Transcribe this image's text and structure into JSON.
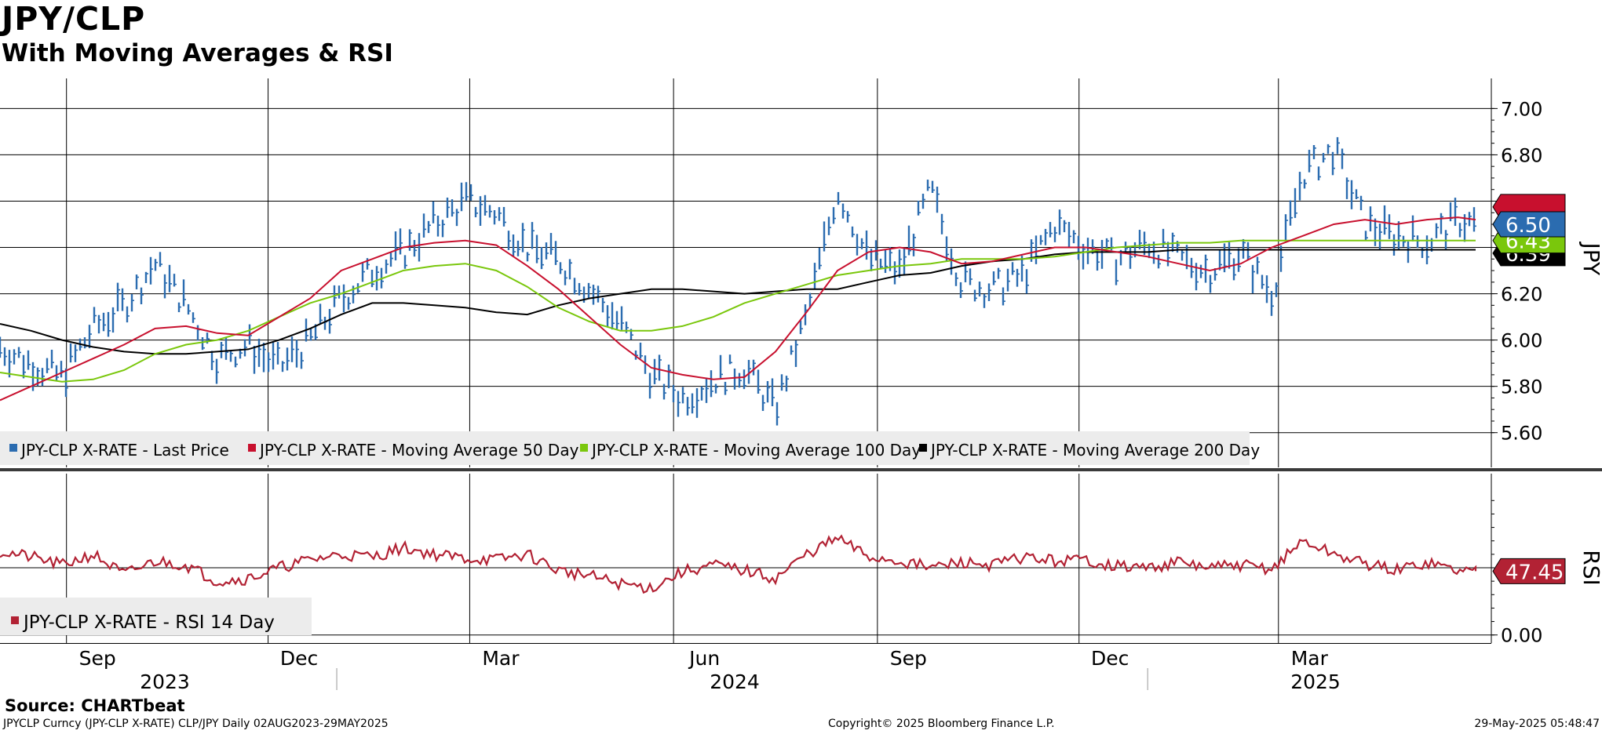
{
  "title": "JPY/CLP",
  "subtitle": "With Moving Averages & RSI",
  "footer": {
    "source": "Source: CHARTbeat",
    "security": "JPYCLP Curncy (JPY-CLP X-RATE) CLP/JPY  Daily 02AUG2023-29MAY2025",
    "copyright": "Copyright© 2025 Bloomberg Finance L.P.",
    "timestamp": "29-May-2025 05:48:47"
  },
  "colors": {
    "price": "#2b6cb0",
    "ma50": "#c8102e",
    "ma100": "#7ac70c",
    "ma200": "#000000",
    "rsi": "#b22234"
  },
  "chart_data": [
    {
      "type": "line",
      "ylabel": "JPY",
      "ylim": [
        5.45,
        7.13
      ],
      "yticks": [
        "7.00",
        "6.80",
        "6.60",
        "6.40",
        "6.20",
        "6.00",
        "5.80",
        "5.60"
      ],
      "x_month_labels": [
        "Sep",
        "Dec",
        "Mar",
        "Jun",
        "Sep",
        "Dec",
        "Mar"
      ],
      "x_year_labels": [
        "2023",
        "2024",
        "2025"
      ],
      "grid": true,
      "legend_placement": "bottom",
      "x": [
        "2023-08-02",
        "2023-08-16",
        "2023-08-30",
        "2023-09-13",
        "2023-09-27",
        "2023-10-11",
        "2023-10-25",
        "2023-11-08",
        "2023-11-22",
        "2023-12-06",
        "2023-12-20",
        "2024-01-03",
        "2024-01-17",
        "2024-01-31",
        "2024-02-14",
        "2024-02-28",
        "2024-03-13",
        "2024-03-27",
        "2024-04-10",
        "2024-04-24",
        "2024-05-08",
        "2024-05-22",
        "2024-06-05",
        "2024-06-19",
        "2024-07-03",
        "2024-07-17",
        "2024-07-31",
        "2024-08-14",
        "2024-08-28",
        "2024-09-11",
        "2024-09-25",
        "2024-10-09",
        "2024-10-23",
        "2024-11-06",
        "2024-11-20",
        "2024-12-04",
        "2024-12-18",
        "2025-01-01",
        "2025-01-15",
        "2025-01-29",
        "2025-02-12",
        "2025-02-26",
        "2025-03-12",
        "2025-03-26",
        "2025-04-09",
        "2025-04-23",
        "2025-05-07",
        "2025-05-21",
        "2025-05-29"
      ],
      "series": [
        {
          "name": "JPY-CLP X-RATE - Last Price",
          "style": "bars",
          "values": [
            5.97,
            5.9,
            5.84,
            6.05,
            6.15,
            6.33,
            6.15,
            5.92,
            5.98,
            5.88,
            6.0,
            6.18,
            6.3,
            6.38,
            6.5,
            6.6,
            6.55,
            6.4,
            6.35,
            6.22,
            6.07,
            5.85,
            5.75,
            5.83,
            5.88,
            5.7,
            6.1,
            6.65,
            6.35,
            6.3,
            6.65,
            6.25,
            6.22,
            6.28,
            6.5,
            6.4,
            6.35,
            6.42,
            6.35,
            6.3,
            6.38,
            6.2,
            6.72,
            6.82,
            6.5,
            6.45,
            6.42,
            6.52,
            6.5
          ]
        },
        {
          "name": "JPY-CLP X-RATE - Moving Average 50 Day",
          "style": "line",
          "values": [
            5.74,
            5.8,
            5.86,
            5.92,
            5.98,
            6.05,
            6.06,
            6.03,
            6.02,
            6.1,
            6.18,
            6.3,
            6.35,
            6.4,
            6.42,
            6.43,
            6.41,
            6.32,
            6.22,
            6.1,
            5.98,
            5.88,
            5.85,
            5.83,
            5.84,
            5.95,
            6.12,
            6.3,
            6.38,
            6.4,
            6.38,
            6.33,
            6.34,
            6.37,
            6.4,
            6.4,
            6.38,
            6.36,
            6.33,
            6.3,
            6.33,
            6.4,
            6.45,
            6.5,
            6.52,
            6.5,
            6.52,
            6.53,
            6.52
          ]
        },
        {
          "name": "JPY-CLP X-RATE - Moving Average 100 Day",
          "style": "line",
          "values": [
            5.86,
            5.84,
            5.82,
            5.83,
            5.87,
            5.94,
            5.98,
            6.0,
            6.04,
            6.1,
            6.16,
            6.2,
            6.25,
            6.3,
            6.32,
            6.33,
            6.3,
            6.23,
            6.14,
            6.08,
            6.04,
            6.04,
            6.06,
            6.1,
            6.16,
            6.2,
            6.24,
            6.28,
            6.3,
            6.32,
            6.33,
            6.35,
            6.35,
            6.35,
            6.36,
            6.38,
            6.4,
            6.41,
            6.42,
            6.42,
            6.43,
            6.43,
            6.43,
            6.43,
            6.43,
            6.43,
            6.43,
            6.43,
            6.43
          ]
        },
        {
          "name": "JPY-CLP X-RATE - Moving Average 200 Day",
          "style": "line",
          "values": [
            6.07,
            6.04,
            6.0,
            5.97,
            5.95,
            5.94,
            5.94,
            5.95,
            5.96,
            6.0,
            6.05,
            6.11,
            6.16,
            6.16,
            6.15,
            6.14,
            6.12,
            6.11,
            6.15,
            6.18,
            6.2,
            6.22,
            6.22,
            6.21,
            6.2,
            6.21,
            6.22,
            6.22,
            6.25,
            6.28,
            6.29,
            6.32,
            6.34,
            6.35,
            6.37,
            6.38,
            6.38,
            6.38,
            6.39,
            6.39,
            6.39,
            6.39,
            6.39,
            6.39,
            6.39,
            6.39,
            6.39,
            6.39,
            6.39
          ]
        }
      ],
      "last_value_tags": [
        "6.50",
        "6.43",
        "6.39"
      ]
    },
    {
      "type": "line",
      "ylabel": "RSI",
      "ylim": [
        -6,
        120
      ],
      "yticks": [
        "0.00"
      ],
      "grid": true,
      "legend_placement": "bottom-left",
      "series": [
        {
          "name": "JPY-CLP X-RATE - RSI 14 Day",
          "values": [
            62,
            58,
            52,
            60,
            45,
            55,
            52,
            40,
            42,
            50,
            56,
            60,
            58,
            65,
            60,
            57,
            56,
            60,
            48,
            44,
            38,
            35,
            47,
            52,
            48,
            42,
            60,
            72,
            58,
            55,
            50,
            54,
            52,
            58,
            55,
            56,
            51,
            50,
            54,
            50,
            52,
            49,
            70,
            60,
            53,
            48,
            54,
            48,
            47.45
          ]
        }
      ],
      "last_value_tags": [
        "47.45"
      ]
    }
  ]
}
